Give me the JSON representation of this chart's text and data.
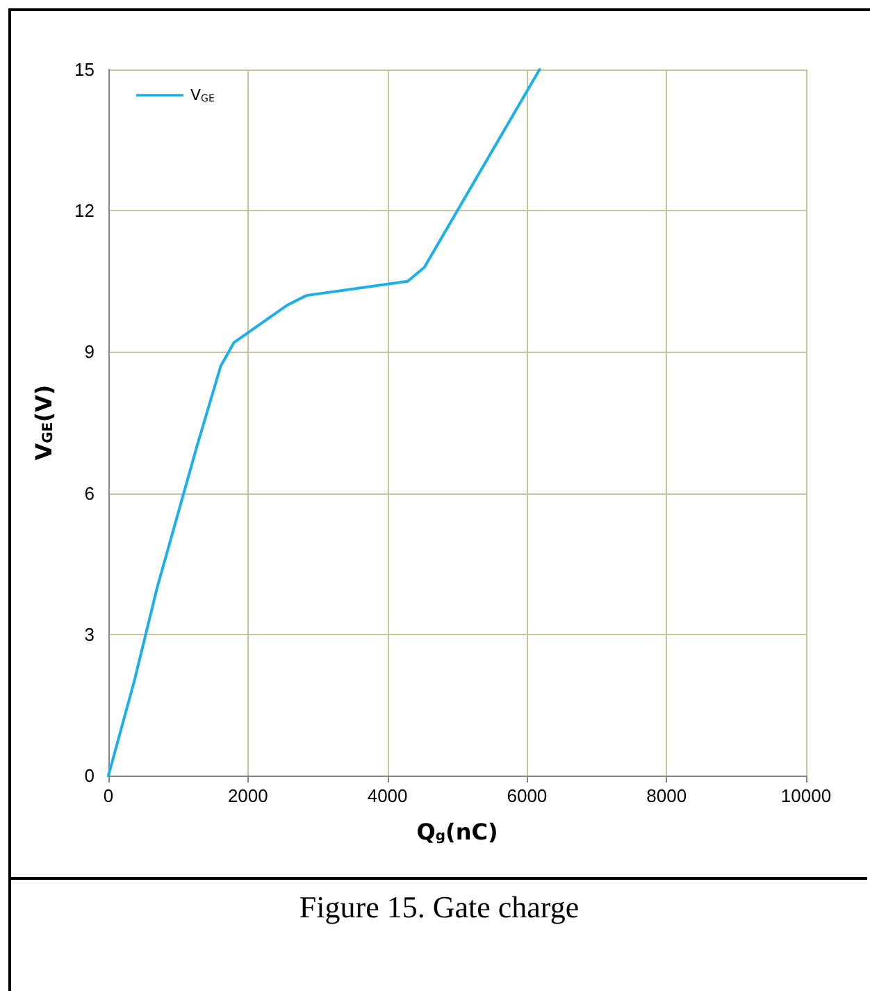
{
  "chart_data": {
    "type": "line",
    "xlabel": "Q$_{g}$(nC)",
    "ylabel": "V$_{GE}$(V)",
    "annotations": [
      "Figure 15. Gate charge"
    ],
    "x": [
      0,
      370,
      700,
      1270,
      1610,
      1800,
      2570,
      2840,
      4290,
      4530,
      6180
    ],
    "series": [
      {
        "name": "V$_{GE}$",
        "color": "#1ab0e8",
        "values": [
          0,
          2,
          4,
          7,
          8.7,
          9.2,
          10,
          10.2,
          10.5,
          10.8,
          15
        ]
      }
    ],
    "xlim": [
      0,
      10000
    ],
    "xticks": [
      0,
      2000,
      4000,
      6000,
      8000,
      10000
    ],
    "ylim": [
      0,
      15
    ],
    "yticks": [
      0,
      3,
      6,
      9,
      12,
      15
    ],
    "grid": true,
    "legend": "top left",
    "marker": "none",
    "line_style": "solid"
  }
}
